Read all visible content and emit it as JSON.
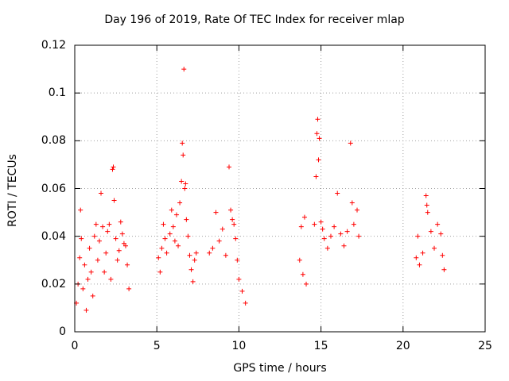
{
  "chart_data": {
    "type": "scatter",
    "title": "Day 196 of 2019, Rate Of TEC Index for receiver mlap",
    "xlabel": "GPS time / hours",
    "ylabel": "ROTI / TECUs",
    "xlim": [
      0,
      25
    ],
    "ylim": [
      0,
      0.12
    ],
    "xticks": [
      0,
      5,
      10,
      15,
      20,
      25
    ],
    "xtick_labels": [
      "0",
      "5",
      "10",
      "15",
      "20",
      "25"
    ],
    "yticks": [
      0,
      0.02,
      0.04,
      0.06,
      0.08,
      0.1,
      0.12
    ],
    "ytick_labels": [
      "0",
      "0.02",
      "0.04",
      "0.06",
      "0.08",
      "0.1",
      "0.12"
    ],
    "grid": true,
    "marker": "+",
    "color": "#ff0000",
    "series": [
      {
        "name": "ROTI",
        "points": [
          [
            0.1,
            0.012
          ],
          [
            0.2,
            0.02
          ],
          [
            0.3,
            0.031
          ],
          [
            0.35,
            0.051
          ],
          [
            0.4,
            0.039
          ],
          [
            0.5,
            0.018
          ],
          [
            0.6,
            0.028
          ],
          [
            0.7,
            0.009
          ],
          [
            0.8,
            0.022
          ],
          [
            0.9,
            0.035
          ],
          [
            1.0,
            0.025
          ],
          [
            1.1,
            0.015
          ],
          [
            1.2,
            0.04
          ],
          [
            1.3,
            0.045
          ],
          [
            1.4,
            0.03
          ],
          [
            1.5,
            0.038
          ],
          [
            1.6,
            0.058
          ],
          [
            1.7,
            0.044
          ],
          [
            1.8,
            0.025
          ],
          [
            1.9,
            0.033
          ],
          [
            2.0,
            0.042
          ],
          [
            2.1,
            0.045
          ],
          [
            2.2,
            0.022
          ],
          [
            2.3,
            0.068
          ],
          [
            2.35,
            0.069
          ],
          [
            2.4,
            0.055
          ],
          [
            2.5,
            0.039
          ],
          [
            2.6,
            0.03
          ],
          [
            2.7,
            0.034
          ],
          [
            2.8,
            0.046
          ],
          [
            2.9,
            0.041
          ],
          [
            3.0,
            0.037
          ],
          [
            3.1,
            0.036
          ],
          [
            3.2,
            0.028
          ],
          [
            3.3,
            0.018
          ],
          [
            5.1,
            0.031
          ],
          [
            5.2,
            0.025
          ],
          [
            5.3,
            0.035
          ],
          [
            5.4,
            0.045
          ],
          [
            5.5,
            0.039
          ],
          [
            5.6,
            0.033
          ],
          [
            5.8,
            0.041
          ],
          [
            5.9,
            0.051
          ],
          [
            6.0,
            0.044
          ],
          [
            6.1,
            0.038
          ],
          [
            6.2,
            0.049
          ],
          [
            6.3,
            0.036
          ],
          [
            6.4,
            0.054
          ],
          [
            6.5,
            0.063
          ],
          [
            6.55,
            0.079
          ],
          [
            6.6,
            0.074
          ],
          [
            6.65,
            0.11
          ],
          [
            6.7,
            0.06
          ],
          [
            6.75,
            0.062
          ],
          [
            6.8,
            0.047
          ],
          [
            6.9,
            0.04
          ],
          [
            7.0,
            0.032
          ],
          [
            7.1,
            0.026
          ],
          [
            7.2,
            0.021
          ],
          [
            7.3,
            0.03
          ],
          [
            7.4,
            0.033
          ],
          [
            8.2,
            0.033
          ],
          [
            8.4,
            0.035
          ],
          [
            8.6,
            0.05
          ],
          [
            8.8,
            0.038
          ],
          [
            9.0,
            0.043
          ],
          [
            9.2,
            0.032
          ],
          [
            9.4,
            0.069
          ],
          [
            9.5,
            0.051
          ],
          [
            9.6,
            0.047
          ],
          [
            9.7,
            0.045
          ],
          [
            9.8,
            0.039
          ],
          [
            9.9,
            0.03
          ],
          [
            10.0,
            0.022
          ],
          [
            10.2,
            0.017
          ],
          [
            10.4,
            0.012
          ],
          [
            13.7,
            0.03
          ],
          [
            13.8,
            0.044
          ],
          [
            13.9,
            0.024
          ],
          [
            14.0,
            0.048
          ],
          [
            14.1,
            0.02
          ],
          [
            14.6,
            0.045
          ],
          [
            14.7,
            0.065
          ],
          [
            14.75,
            0.083
          ],
          [
            14.8,
            0.089
          ],
          [
            14.85,
            0.072
          ],
          [
            14.9,
            0.081
          ],
          [
            15.0,
            0.046
          ],
          [
            15.1,
            0.043
          ],
          [
            15.2,
            0.039
          ],
          [
            15.4,
            0.035
          ],
          [
            15.6,
            0.04
          ],
          [
            15.8,
            0.044
          ],
          [
            16.0,
            0.058
          ],
          [
            16.2,
            0.041
          ],
          [
            16.4,
            0.036
          ],
          [
            16.6,
            0.042
          ],
          [
            16.8,
            0.079
          ],
          [
            16.9,
            0.054
          ],
          [
            17.0,
            0.045
          ],
          [
            17.2,
            0.051
          ],
          [
            17.3,
            0.04
          ],
          [
            20.8,
            0.031
          ],
          [
            20.9,
            0.04
          ],
          [
            21.0,
            0.028
          ],
          [
            21.2,
            0.033
          ],
          [
            21.4,
            0.057
          ],
          [
            21.45,
            0.053
          ],
          [
            21.5,
            0.05
          ],
          [
            21.7,
            0.042
          ],
          [
            21.9,
            0.035
          ],
          [
            22.1,
            0.045
          ],
          [
            22.3,
            0.041
          ],
          [
            22.4,
            0.032
          ],
          [
            22.5,
            0.026
          ]
        ]
      }
    ]
  }
}
